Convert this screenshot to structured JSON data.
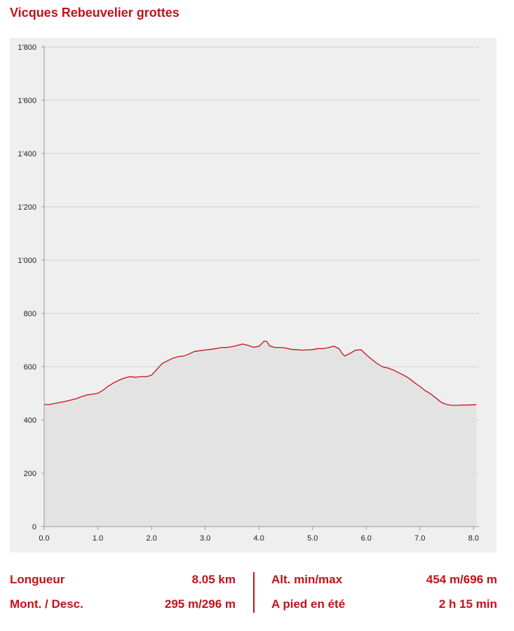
{
  "header": {
    "title": "Vicques Rebeuvelier grottes"
  },
  "chart_data": {
    "type": "area",
    "title": "Vicques Rebeuvelier grottes",
    "xlabel": "",
    "ylabel": "",
    "xlim": [
      0,
      8.1
    ],
    "ylim": [
      0,
      1800
    ],
    "grid": true,
    "x_ticks": [
      "0.0",
      "1.0",
      "2.0",
      "3.0",
      "4.0",
      "5.0",
      "6.0",
      "7.0",
      "8.0"
    ],
    "y_ticks": [
      "0",
      "200",
      "400",
      "600",
      "800",
      "1'000",
      "1'200",
      "1'400",
      "1'600",
      "1'800"
    ],
    "colors": {
      "line": "#c4121a",
      "fill": "#e3e3e3",
      "background": "#efefef"
    },
    "x": [
      0,
      0.1,
      0.2,
      0.3,
      0.4,
      0.5,
      0.6,
      0.7,
      0.8,
      0.9,
      1.0,
      1.1,
      1.2,
      1.3,
      1.4,
      1.5,
      1.6,
      1.7,
      1.8,
      1.9,
      2.0,
      2.1,
      2.2,
      2.3,
      2.4,
      2.5,
      2.6,
      2.7,
      2.8,
      2.9,
      3.0,
      3.1,
      3.2,
      3.3,
      3.4,
      3.5,
      3.6,
      3.7,
      3.8,
      3.9,
      4.0,
      4.1,
      4.15,
      4.2,
      4.3,
      4.4,
      4.5,
      4.6,
      4.7,
      4.8,
      4.9,
      5.0,
      5.1,
      5.2,
      5.3,
      5.4,
      5.5,
      5.55,
      5.6,
      5.7,
      5.8,
      5.9,
      6.0,
      6.1,
      6.2,
      6.3,
      6.4,
      6.5,
      6.6,
      6.7,
      6.8,
      6.9,
      7.0,
      7.1,
      7.2,
      7.3,
      7.4,
      7.5,
      7.6,
      7.7,
      7.8,
      7.9,
      8.0,
      8.05
    ],
    "values": [
      458,
      458,
      462,
      466,
      470,
      475,
      480,
      488,
      494,
      497,
      500,
      512,
      528,
      540,
      550,
      558,
      563,
      560,
      563,
      562,
      568,
      590,
      612,
      622,
      632,
      638,
      640,
      648,
      657,
      660,
      663,
      665,
      668,
      672,
      672,
      675,
      680,
      685,
      680,
      673,
      676,
      696,
      694,
      678,
      672,
      672,
      670,
      665,
      664,
      662,
      663,
      664,
      668,
      668,
      672,
      677,
      666,
      650,
      640,
      650,
      662,
      664,
      645,
      628,
      612,
      600,
      595,
      588,
      578,
      568,
      556,
      540,
      526,
      510,
      498,
      482,
      466,
      458,
      455,
      455,
      456,
      456,
      457,
      457
    ]
  },
  "stats": {
    "length_label": "Longueur",
    "length_value": "8.05 km",
    "ascent_label": "Mont. / Desc.",
    "ascent_value": "295 m/296 m",
    "alt_label": "Alt. min/max",
    "alt_value": "454 m/696 m",
    "duration_label": "A pied en été",
    "duration_value": "2 h 15 min"
  }
}
